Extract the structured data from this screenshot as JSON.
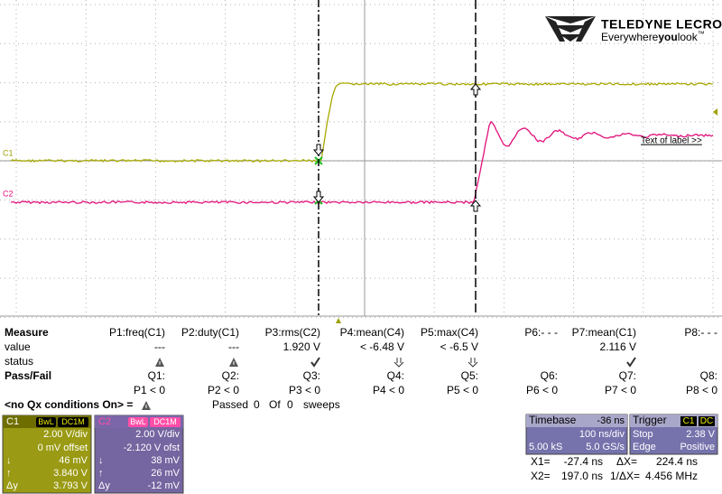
{
  "logo": {
    "brand": "TELEDYNE LECROY",
    "tagline": [
      "Everywhere",
      "you",
      "look"
    ],
    "trademark": "™"
  },
  "traces": {
    "c1_label": "C1",
    "c2_label": "C2",
    "annotation": "Text of label >>"
  },
  "measure": {
    "header": [
      "Measure",
      "P1:freq(C1)",
      "P2:duty(C1)",
      "P3:rms(C2)",
      "P4:mean(C4)",
      "P5:max(C4)",
      "P6:- - -",
      "P7:mean(C1)",
      "P8:- - -"
    ],
    "value": [
      "value",
      "---",
      "---",
      "1.920 V",
      "< -6.48 V",
      "< -6.5 V",
      null,
      "2.116 V",
      null
    ],
    "status": [
      "status"
    ],
    "pass_fail": [
      "Pass/Fail",
      "Q1:",
      "Q2:",
      "Q3:",
      "Q4:",
      "Q5:",
      "Q6:",
      "Q7:",
      "Q8:"
    ],
    "conditions": [
      null,
      "P1 < 0",
      "P2 < 0",
      "P3 < 0",
      "P4 < 0",
      "P5 < 0",
      "P6 < 0",
      "P7 < 0",
      "P8 < 0"
    ]
  },
  "qx": {
    "note": "<no Qx conditions On> =",
    "passed": "Passed",
    "passed_count": 0,
    "of": "Of",
    "of_count": 0,
    "sweeps": "sweeps"
  },
  "channels": [
    {
      "name": "C1",
      "badges": [
        "BwL",
        "DC1M"
      ],
      "scale": "2.00 V/div",
      "offset": "0 mV offset",
      "measures": [
        {
          "label": "↓",
          "value": "46 mV"
        },
        {
          "label": "↑",
          "value": "3.840 V"
        },
        {
          "label": "Δy",
          "value": "3.793 V"
        }
      ]
    },
    {
      "name": "C2",
      "badges": [
        "BwL",
        "DC1M"
      ],
      "scale": "2.00 V/div",
      "offset": "-2.120 V ofst",
      "measures": [
        {
          "label": "↓",
          "value": "38 mV"
        },
        {
          "label": "↑",
          "value": "26 mV"
        },
        {
          "label": "Δy",
          "value": "-12 mV"
        }
      ]
    }
  ],
  "timebase": {
    "title": "Timebase",
    "delay": "-36 ns",
    "scale": "100 ns/div",
    "samples": "5.00 kS",
    "rate": "5.0 GS/s"
  },
  "trigger": {
    "title": "Trigger",
    "source": "C1",
    "coupling": "DC",
    "mode": "Stop",
    "level": "2.38 V",
    "type": "Edge",
    "slope": "Positive"
  },
  "cursors": {
    "x1_label": "X1=",
    "x1": "-27.4 ns",
    "dx_label": "ΔX=",
    "dx": "224.4 ns",
    "x2_label": "X2=",
    "x2": "197.0 ns",
    "inv_label": "1/ΔX=",
    "inv": "4.456 MHz"
  }
}
